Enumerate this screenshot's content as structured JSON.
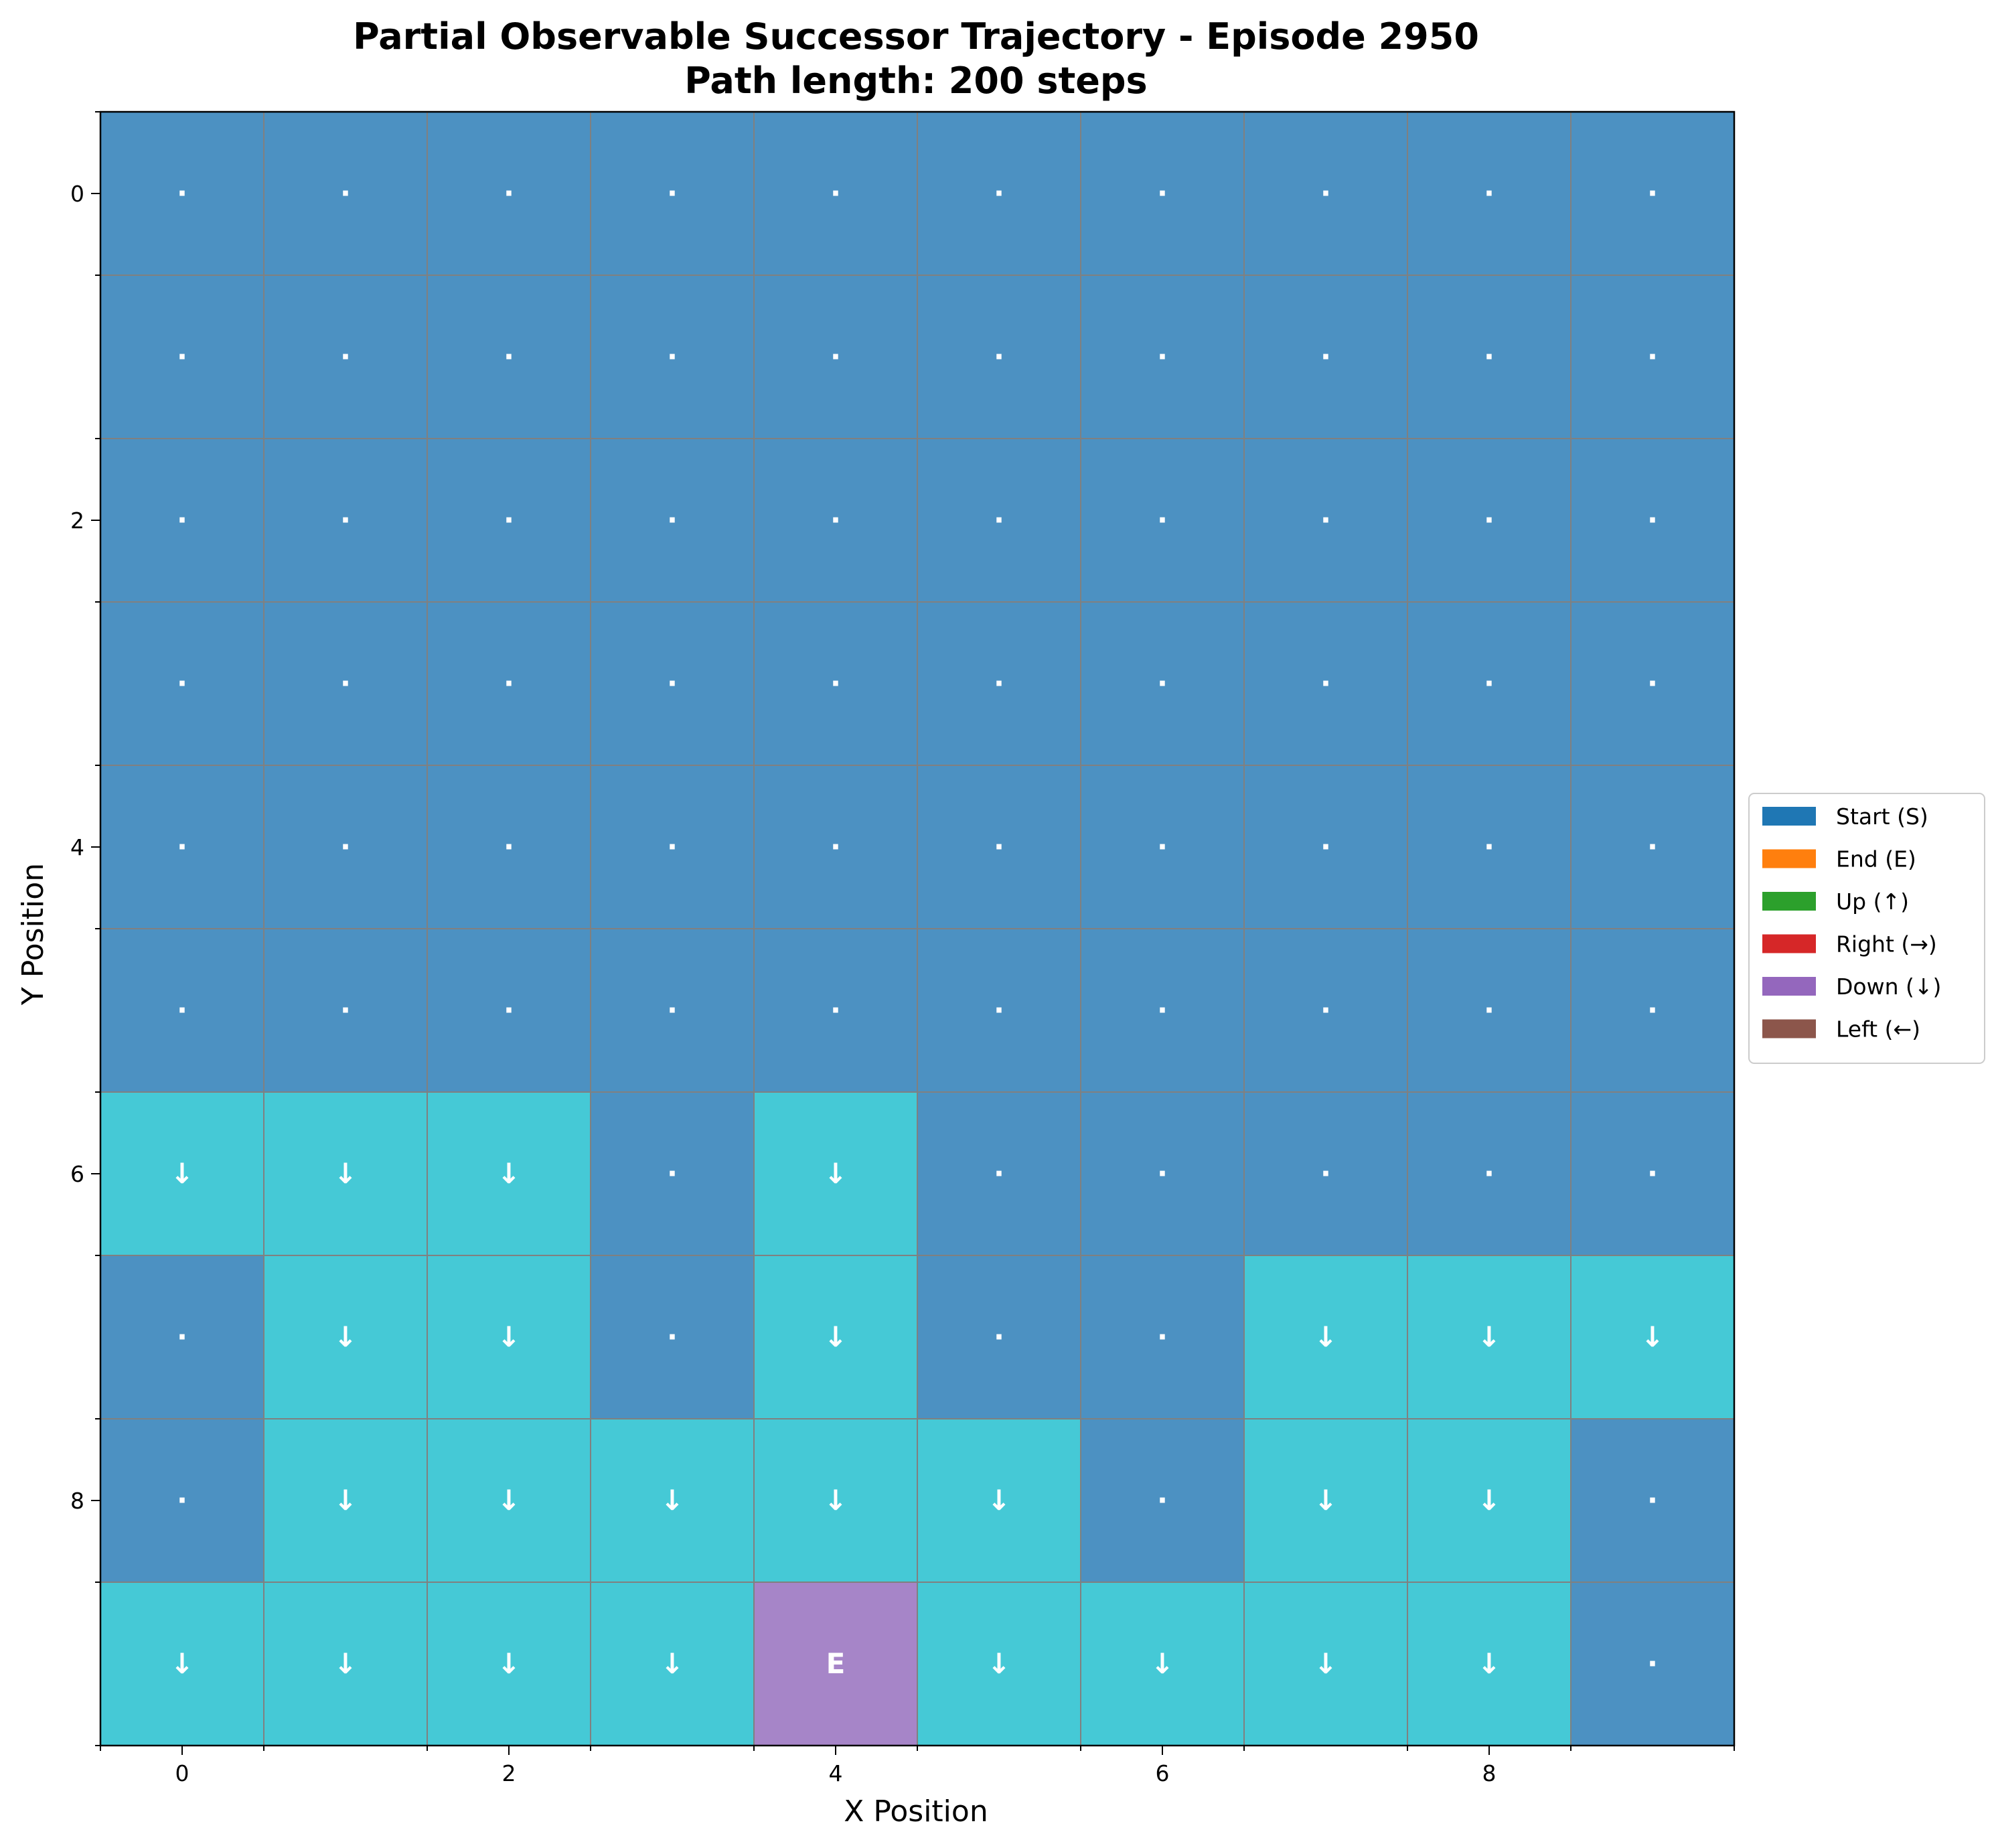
{
  "chart_data": {
    "type": "heatmap",
    "title": "Partial Observable Successor Trajectory - Episode 2950",
    "subtitle": "Path length: 200 steps",
    "xlabel": "X Position",
    "ylabel": "Y Position",
    "x_ticks": [
      "0",
      "2",
      "4",
      "6",
      "8"
    ],
    "y_ticks": [
      "0",
      "2",
      "4",
      "6",
      "8"
    ],
    "xlim": [
      -0.5,
      9.5
    ],
    "ylim": [
      -0.5,
      9.5
    ],
    "grid_size": 10,
    "cell_categories": {
      "unvisited": {
        "color": "#4c91c2",
        "symbol": "·"
      },
      "down": {
        "color": "#45c9d6",
        "symbol": "↓"
      },
      "end": {
        "color": "#a685c8",
        "symbol": "E"
      }
    },
    "grid": [
      [
        "unvisited",
        "unvisited",
        "unvisited",
        "unvisited",
        "unvisited",
        "unvisited",
        "unvisited",
        "unvisited",
        "unvisited",
        "unvisited"
      ],
      [
        "unvisited",
        "unvisited",
        "unvisited",
        "unvisited",
        "unvisited",
        "unvisited",
        "unvisited",
        "unvisited",
        "unvisited",
        "unvisited"
      ],
      [
        "unvisited",
        "unvisited",
        "unvisited",
        "unvisited",
        "unvisited",
        "unvisited",
        "unvisited",
        "unvisited",
        "unvisited",
        "unvisited"
      ],
      [
        "unvisited",
        "unvisited",
        "unvisited",
        "unvisited",
        "unvisited",
        "unvisited",
        "unvisited",
        "unvisited",
        "unvisited",
        "unvisited"
      ],
      [
        "unvisited",
        "unvisited",
        "unvisited",
        "unvisited",
        "unvisited",
        "unvisited",
        "unvisited",
        "unvisited",
        "unvisited",
        "unvisited"
      ],
      [
        "unvisited",
        "unvisited",
        "unvisited",
        "unvisited",
        "unvisited",
        "unvisited",
        "unvisited",
        "unvisited",
        "unvisited",
        "unvisited"
      ],
      [
        "down",
        "down",
        "down",
        "unvisited",
        "down",
        "unvisited",
        "unvisited",
        "unvisited",
        "unvisited",
        "unvisited"
      ],
      [
        "unvisited",
        "down",
        "down",
        "unvisited",
        "down",
        "unvisited",
        "unvisited",
        "down",
        "down",
        "down"
      ],
      [
        "unvisited",
        "down",
        "down",
        "down",
        "down",
        "down",
        "unvisited",
        "down",
        "down",
        "unvisited"
      ],
      [
        "down",
        "down",
        "down",
        "down",
        "end",
        "down",
        "down",
        "down",
        "down",
        "unvisited"
      ]
    ],
    "legend": [
      {
        "label": "Start (S)",
        "color": "#1f77b4"
      },
      {
        "label": "End (E)",
        "color": "#ff7f0e"
      },
      {
        "label": "Up (↑)",
        "color": "#2ca02c"
      },
      {
        "label": "Right (→)",
        "color": "#d62728"
      },
      {
        "label": "Down (↓)",
        "color": "#9467bd"
      },
      {
        "label": "Left (←)",
        "color": "#8c564b"
      }
    ],
    "legend_position": "center-right",
    "grid_lines": true
  }
}
